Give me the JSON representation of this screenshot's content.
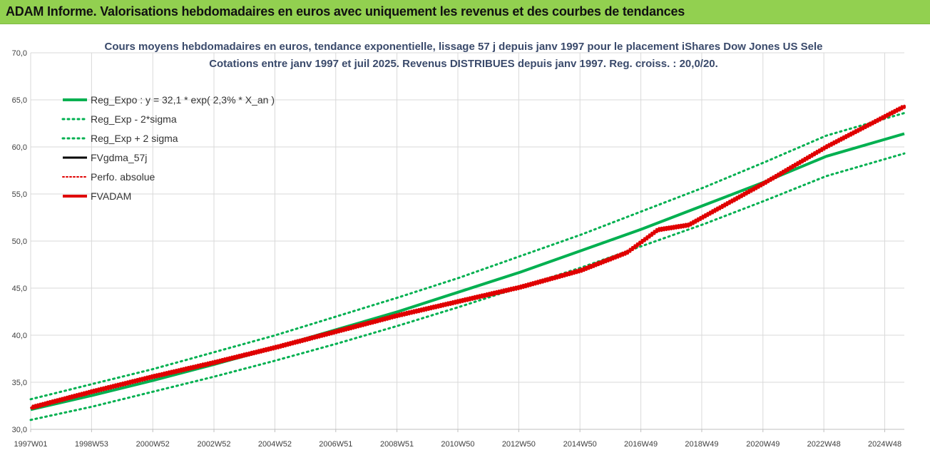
{
  "header": {
    "title": "ADAM Informe. Valorisations hebdomadaires en euros avec uniquement les revenus et des courbes de tendances"
  },
  "colors": {
    "header_bg": "#92d050",
    "green": "#00b050",
    "red": "#e00000",
    "black": "#000000"
  },
  "chart_data": {
    "type": "line",
    "title_line1": "Cours moyens hebdomadaires en euros, tendance exponentielle, lissage 57 j depuis janv 1997 pour le placement iShares Dow Jones US Sele",
    "title_line2": "Cotations entre janv 1997 et juil 2025. Revenus DISTRIBUES depuis janv 1997. Reg. croiss. : 20,0/20.",
    "ylim": [
      30,
      70
    ],
    "y_ticks": [
      "30,0",
      "35,0",
      "40,0",
      "45,0",
      "50,0",
      "55,0",
      "60,0",
      "65,0",
      "70,0"
    ],
    "x_range": [
      1997.0,
      2025.55
    ],
    "x_tick_positions": [
      1997.0,
      1998.99,
      2000.99,
      2002.99,
      2004.98,
      2006.97,
      2008.97,
      2010.96,
      2012.95,
      2014.95,
      2016.94,
      2018.93,
      2020.93,
      2022.92,
      2024.91
    ],
    "x_tick_labels": [
      "1997W01",
      "1998W53",
      "2000W52",
      "2002W52",
      "2004W52",
      "2006W51",
      "2008W51",
      "2010W50",
      "2012W50",
      "2014W50",
      "2016W49",
      "2018W49",
      "2020W49",
      "2022W48",
      "2024W48"
    ],
    "grid": true,
    "legend_position": "top-left",
    "legend": [
      {
        "label": "Reg_Expo : y = 32,1 * exp( 2,3% *  X_an )",
        "color": "#00b050",
        "style": "solid",
        "width": 4
      },
      {
        "label": "Reg_Exp - 2*sigma",
        "color": "#00b050",
        "style": "dotted",
        "width": 3
      },
      {
        "label": "Reg_Exp + 2 sigma",
        "color": "#00b050",
        "style": "dotted",
        "width": 3
      },
      {
        "label": "FVgdma_57j",
        "color": "#000000",
        "style": "solid",
        "width": 3
      },
      {
        "label": "Perfo. absolue",
        "color": "#e00000",
        "style": "dotted",
        "width": 2
      },
      {
        "label": "FVADAM",
        "color": "#e00000",
        "style": "solid",
        "width": 4
      }
    ],
    "series": [
      {
        "name": "Reg_Expo : y = 32,1 * exp( 2,3% *  X_an )",
        "x": [
          1997.0,
          1999.0,
          2001.0,
          2003.0,
          2005.0,
          2007.0,
          2009.0,
          2011.0,
          2013.0,
          2015.0,
          2017.0,
          2019.0,
          2021.0,
          2023.0,
          2025.55
        ],
        "y": [
          32.1,
          33.6,
          35.2,
          36.9,
          38.7,
          40.6,
          42.5,
          44.6,
          46.7,
          49.0,
          51.3,
          53.8,
          56.3,
          59.0,
          61.4
        ]
      },
      {
        "name": "Reg_Exp - 2*sigma",
        "x": [
          1997.0,
          1999.0,
          2001.0,
          2003.0,
          2005.0,
          2007.0,
          2009.0,
          2011.0,
          2013.0,
          2015.0,
          2017.0,
          2019.0,
          2021.0,
          2023.0,
          2025.55
        ],
        "y": [
          31.0,
          32.4,
          34.0,
          35.6,
          37.3,
          39.1,
          41.0,
          43.0,
          45.1,
          47.2,
          49.5,
          51.8,
          54.3,
          56.9,
          59.3
        ]
      },
      {
        "name": "Reg_Exp + 2 sigma",
        "x": [
          1997.0,
          1999.0,
          2001.0,
          2003.0,
          2005.0,
          2007.0,
          2009.0,
          2011.0,
          2013.0,
          2015.0,
          2017.0,
          2019.0,
          2021.0,
          2023.0,
          2025.55
        ],
        "y": [
          33.2,
          34.8,
          36.4,
          38.2,
          40.0,
          42.0,
          44.0,
          46.1,
          48.4,
          50.7,
          53.2,
          55.7,
          58.4,
          61.2,
          63.6
        ]
      },
      {
        "name": "FVgdma_57j",
        "x": [
          1997.0,
          1999.0,
          2001.0,
          2003.0,
          2005.0,
          2007.0,
          2009.0,
          2011.0,
          2013.0,
          2015.0,
          2016.5,
          2017.5,
          2018.5,
          2019.5,
          2021.0,
          2023.0,
          2025.55
        ],
        "y": [
          32.3,
          34.0,
          35.6,
          37.1,
          38.7,
          40.4,
          42.1,
          43.6,
          45.1,
          46.9,
          48.8,
          51.2,
          51.7,
          53.5,
          56.2,
          60.0,
          64.3
        ]
      },
      {
        "name": "Perfo. absolue",
        "x": [
          1997.0,
          1999.0,
          2001.0,
          2003.0,
          2005.0,
          2007.0,
          2009.0,
          2011.0,
          2013.0,
          2015.0,
          2016.5,
          2017.5,
          2018.5,
          2019.5,
          2021.0,
          2023.0,
          2025.55
        ],
        "y": [
          32.3,
          34.0,
          35.6,
          37.1,
          38.7,
          40.4,
          42.1,
          43.6,
          45.1,
          46.9,
          48.8,
          51.2,
          51.7,
          53.5,
          56.2,
          60.0,
          64.3
        ]
      },
      {
        "name": "FVADAM",
        "x": [
          1997.0,
          1999.0,
          2001.0,
          2003.0,
          2005.0,
          2007.0,
          2009.0,
          2011.0,
          2013.0,
          2015.0,
          2016.5,
          2017.5,
          2018.5,
          2019.5,
          2021.0,
          2023.0,
          2025.55
        ],
        "y": [
          32.3,
          34.0,
          35.6,
          37.1,
          38.7,
          40.4,
          42.1,
          43.6,
          45.1,
          46.9,
          48.8,
          51.2,
          51.7,
          53.5,
          56.2,
          60.0,
          64.3
        ]
      }
    ]
  }
}
